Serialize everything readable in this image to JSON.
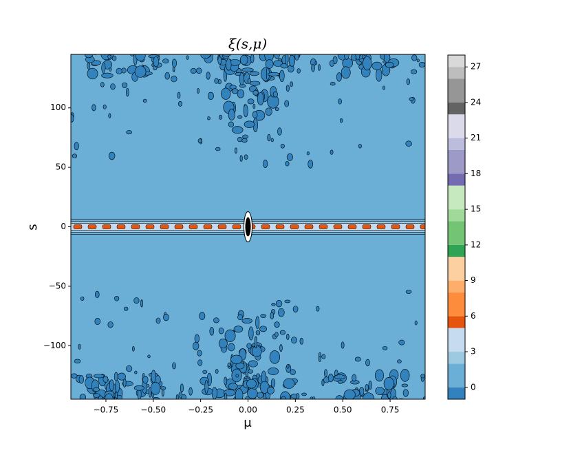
{
  "chart_data": {
    "type": "contour",
    "title": "ξ(s,μ)",
    "x_label": "μ",
    "y_label": "s",
    "xlim": [
      -0.935,
      0.935
    ],
    "ylim": [
      -145,
      145
    ],
    "xticks": [
      {
        "value": -0.75,
        "label": "−0.75"
      },
      {
        "value": -0.5,
        "label": "−0.50"
      },
      {
        "value": -0.25,
        "label": "−0.25"
      },
      {
        "value": 0,
        "label": "0.00"
      },
      {
        "value": 0.25,
        "label": "0.25"
      },
      {
        "value": 0.5,
        "label": "0.50"
      },
      {
        "value": 0.75,
        "label": "0.75"
      }
    ],
    "yticks": [
      {
        "value": -100,
        "label": "−100"
      },
      {
        "value": -50,
        "label": "−50"
      },
      0,
      50,
      100
    ],
    "levels": [
      -1,
      0,
      2,
      3,
      5,
      6,
      8,
      9,
      11,
      12,
      14,
      15,
      17,
      18,
      20,
      21,
      23,
      24,
      26,
      27,
      28
    ],
    "colors": [
      "#3182bd",
      "#6baed6",
      "#9ecae1",
      "#c6dbef",
      "#e6550d",
      "#fd8d3c",
      "#fdae6b",
      "#fdd0a2",
      "#31a354",
      "#74c476",
      "#a1d99b",
      "#c7e9c0",
      "#756bb1",
      "#9e9ac8",
      "#bcbddc",
      "#dadaeb",
      "#636363",
      "#969696",
      "#bdbdbd",
      "#d9d9d9"
    ],
    "colorbar_ticks": [
      0,
      3,
      6,
      9,
      12,
      15,
      18,
      21,
      24,
      27
    ]
  }
}
